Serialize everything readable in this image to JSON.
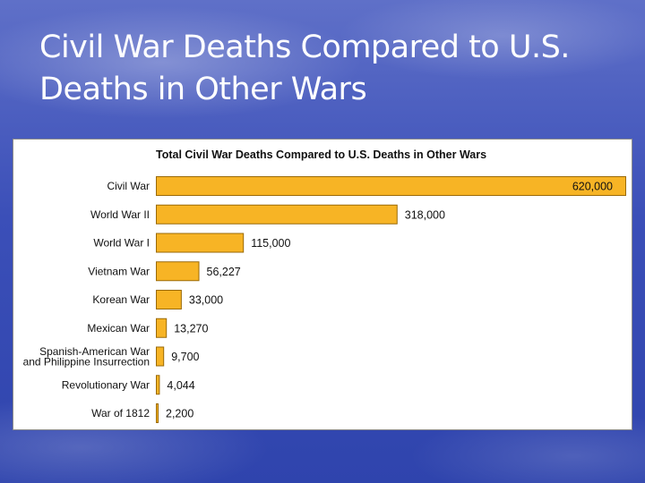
{
  "slide": {
    "title_line1": "Civil War Deaths Compared to U.S.",
    "title_line2": "Deaths in Other Wars"
  },
  "chart_data": {
    "type": "bar",
    "orientation": "horizontal",
    "title": "Total Civil War Deaths Compared to U.S. Deaths in Other Wars",
    "categories": [
      [
        "Civil War"
      ],
      [
        "World War II"
      ],
      [
        "World War I"
      ],
      [
        "Vietnam War"
      ],
      [
        "Korean War"
      ],
      [
        "Mexican War"
      ],
      [
        "Spanish-American War",
        "and Philippine Insurrection"
      ],
      [
        "Revolutionary War"
      ],
      [
        "War of 1812"
      ]
    ],
    "values": [
      620000,
      318000,
      115000,
      56227,
      33000,
      13270,
      9700,
      4044,
      2200
    ],
    "value_labels": [
      "620,000",
      "318,000",
      "115,000",
      "56,227",
      "33,000",
      "13,270",
      "9,700",
      "4,044",
      "2,200"
    ],
    "xlim": [
      0,
      620000
    ],
    "grid": false,
    "legend": "none",
    "bar_color": "#f7b425",
    "bar_edge_color": "#9a6a08"
  }
}
